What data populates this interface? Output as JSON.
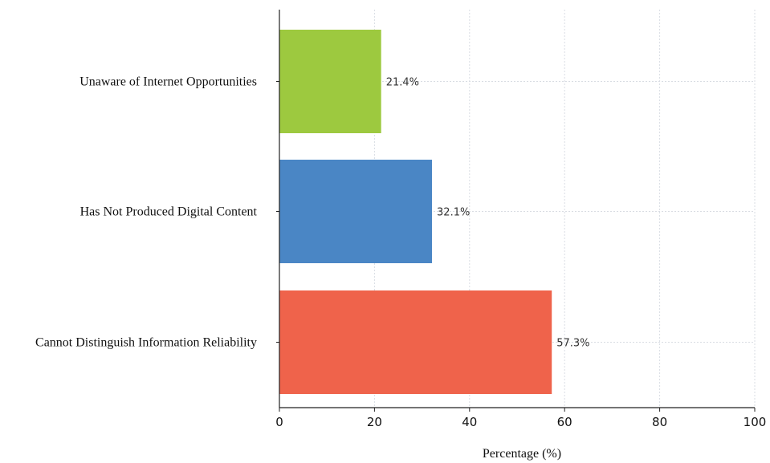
{
  "chart_data": {
    "type": "bar",
    "orientation": "horizontal",
    "categories": [
      "Unaware of Internet Opportunities",
      "Has Not Produced Digital Content",
      "Cannot Distinguish Information Reliability"
    ],
    "values": [
      21.4,
      32.1,
      57.3
    ],
    "value_labels": [
      "21.4%",
      "32.1%",
      "57.3%"
    ],
    "colors": [
      "#9dc93f",
      "#4a86c5",
      "#ef634b"
    ],
    "xlabel": "Percentage (%)",
    "ylabel": "",
    "xlim": [
      0,
      100
    ],
    "xticks": [
      "0",
      "20",
      "40",
      "60",
      "80",
      "100"
    ],
    "grid": true
  }
}
